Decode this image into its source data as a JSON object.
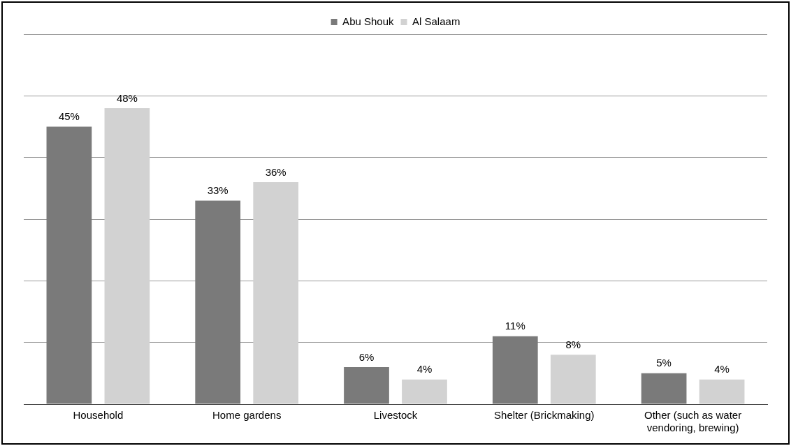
{
  "chart_data": {
    "type": "bar",
    "categories": [
      "Household",
      "Home gardens",
      "Livestock",
      "Shelter (Brickmaking)",
      "Other (such as water vendoring, brewing)"
    ],
    "series": [
      {
        "name": "Abu Shouk",
        "color": "#7a7a7a",
        "values": [
          45,
          33,
          6,
          11,
          5
        ],
        "value_labels": [
          "45%",
          "33%",
          "6%",
          "11%",
          "5%"
        ]
      },
      {
        "name": "Al Salaam",
        "color": "#d2d2d2",
        "values": [
          48,
          36,
          4,
          8,
          4
        ],
        "value_labels": [
          "48%",
          "36%",
          "4%",
          "8%",
          "4%"
        ]
      }
    ],
    "tick_labels": "x",
    "grid": "y",
    "legend": "top"
  }
}
